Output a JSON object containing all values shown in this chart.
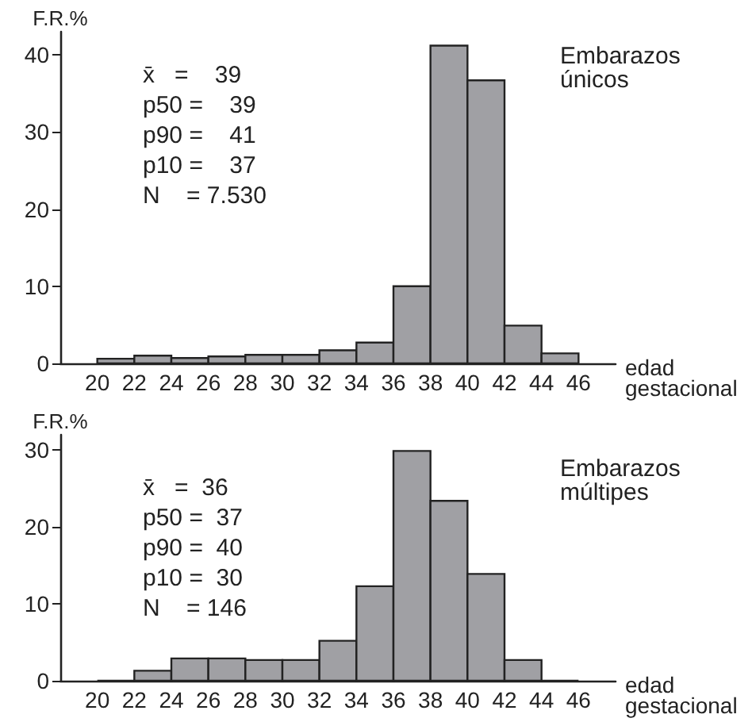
{
  "chart_data": [
    {
      "type": "histogram",
      "title": "Embarazos\núnicos",
      "xlabel": "edad\ngestacional",
      "ylabel": "F.R.%",
      "bins": [
        20,
        22,
        24,
        26,
        28,
        30,
        32,
        34,
        36,
        38,
        40,
        42,
        44,
        46
      ],
      "values": [
        0.6,
        1.0,
        0.7,
        0.9,
        1.1,
        1.1,
        1.7,
        2.7,
        10,
        41.2,
        36.7,
        4.9,
        1.3
      ],
      "color": "#a0a0a4",
      "xlim": [
        18,
        48
      ],
      "xticks": [
        20,
        22,
        24,
        26,
        28,
        30,
        32,
        34,
        36,
        38,
        40,
        42,
        44,
        46
      ],
      "ylim": [
        0,
        43
      ],
      "yticks": [
        0,
        10,
        20,
        30,
        40
      ],
      "grid": false,
      "annotations": [
        "x̄   =    39",
        "p50 =    39",
        "p90 =    41",
        "p10 =    37",
        "N    = 7.530"
      ]
    },
    {
      "type": "histogram",
      "title": "Embarazos\nmúltipes",
      "xlabel": "edad\ngestacional",
      "ylabel": "F.R.%",
      "bins": [
        20,
        22,
        24,
        26,
        28,
        30,
        32,
        34,
        36,
        38,
        40,
        42,
        44,
        46
      ],
      "values": [
        0,
        1.3,
        2.9,
        2.9,
        2.7,
        2.7,
        5.2,
        12.3,
        29.9,
        23.4,
        13.9,
        2.7,
        0
      ],
      "color": "#a0a0a4",
      "xlim": [
        18,
        48
      ],
      "xticks": [
        20,
        22,
        24,
        26,
        28,
        30,
        32,
        34,
        36,
        38,
        40,
        42,
        44,
        46
      ],
      "ylim": [
        0,
        32
      ],
      "yticks": [
        0,
        10,
        20,
        30
      ],
      "grid": false,
      "annotations": [
        "x̄   =  36",
        "p50 =  37",
        "p90 =  40",
        "p10 =  30",
        "N    = 146"
      ]
    }
  ]
}
